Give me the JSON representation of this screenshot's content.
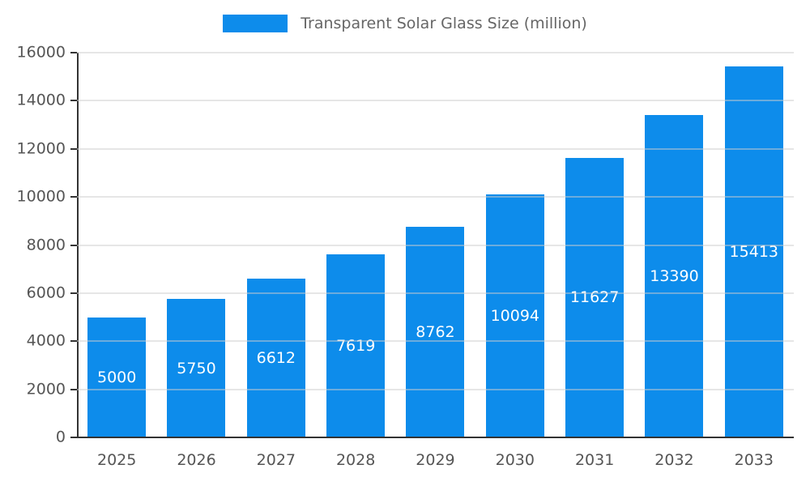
{
  "legend": {
    "label": "Transparent Solar Glass Size (million)"
  },
  "colors": {
    "bar": "#0d8ceb",
    "grid": "#cccccc",
    "axis_line": "#333333",
    "axis_text": "#555555",
    "legend_text": "#666666",
    "bar_label_text": "#ffffff"
  },
  "chart_data": {
    "type": "bar",
    "title": "Transparent Solar Glass Size (million)",
    "categories": [
      "2025",
      "2026",
      "2027",
      "2028",
      "2029",
      "2030",
      "2031",
      "2032",
      "2033"
    ],
    "values": [
      5000,
      5750,
      6612,
      7619,
      8762,
      10094,
      11627,
      13390,
      15413
    ],
    "series_name": "Transparent Solar Glass Size (million)",
    "xlabel": "",
    "ylabel": "",
    "ylim": [
      0,
      16000
    ],
    "yticks": [
      0,
      2000,
      4000,
      6000,
      8000,
      10000,
      12000,
      14000,
      16000
    ],
    "grid": true,
    "legend_position": "top",
    "data_labels": "inside-center"
  }
}
